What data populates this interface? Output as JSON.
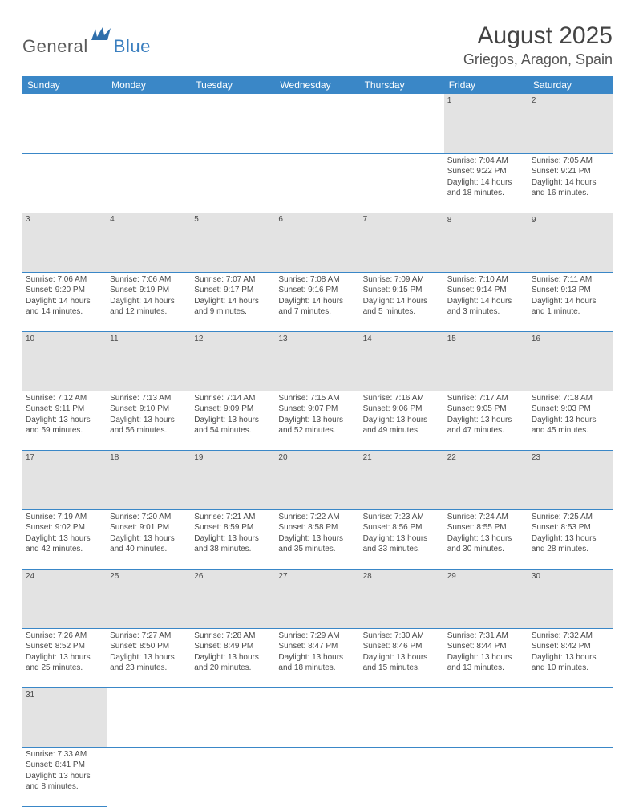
{
  "brand": {
    "part1": "General",
    "part2": "Blue"
  },
  "title": "August 2025",
  "location": "Griegos, Aragon, Spain",
  "weekdays": [
    "Sunday",
    "Monday",
    "Tuesday",
    "Wednesday",
    "Thursday",
    "Friday",
    "Saturday"
  ],
  "colors": {
    "header_bg": "#3a87c7",
    "header_text": "#ffffff",
    "daynum_bg": "#e3e3e3",
    "rule": "#3a87c7",
    "brand_blue": "#3b7fbf",
    "text": "#4a4a4a"
  },
  "weeks": [
    [
      null,
      null,
      null,
      null,
      null,
      {
        "n": "1",
        "sr": "7:04 AM",
        "ss": "9:22 PM",
        "dl": "14 hours and 18 minutes."
      },
      {
        "n": "2",
        "sr": "7:05 AM",
        "ss": "9:21 PM",
        "dl": "14 hours and 16 minutes."
      }
    ],
    [
      {
        "n": "3",
        "sr": "7:06 AM",
        "ss": "9:20 PM",
        "dl": "14 hours and 14 minutes."
      },
      {
        "n": "4",
        "sr": "7:06 AM",
        "ss": "9:19 PM",
        "dl": "14 hours and 12 minutes."
      },
      {
        "n": "5",
        "sr": "7:07 AM",
        "ss": "9:17 PM",
        "dl": "14 hours and 9 minutes."
      },
      {
        "n": "6",
        "sr": "7:08 AM",
        "ss": "9:16 PM",
        "dl": "14 hours and 7 minutes."
      },
      {
        "n": "7",
        "sr": "7:09 AM",
        "ss": "9:15 PM",
        "dl": "14 hours and 5 minutes."
      },
      {
        "n": "8",
        "sr": "7:10 AM",
        "ss": "9:14 PM",
        "dl": "14 hours and 3 minutes."
      },
      {
        "n": "9",
        "sr": "7:11 AM",
        "ss": "9:13 PM",
        "dl": "14 hours and 1 minute."
      }
    ],
    [
      {
        "n": "10",
        "sr": "7:12 AM",
        "ss": "9:11 PM",
        "dl": "13 hours and 59 minutes."
      },
      {
        "n": "11",
        "sr": "7:13 AM",
        "ss": "9:10 PM",
        "dl": "13 hours and 56 minutes."
      },
      {
        "n": "12",
        "sr": "7:14 AM",
        "ss": "9:09 PM",
        "dl": "13 hours and 54 minutes."
      },
      {
        "n": "13",
        "sr": "7:15 AM",
        "ss": "9:07 PM",
        "dl": "13 hours and 52 minutes."
      },
      {
        "n": "14",
        "sr": "7:16 AM",
        "ss": "9:06 PM",
        "dl": "13 hours and 49 minutes."
      },
      {
        "n": "15",
        "sr": "7:17 AM",
        "ss": "9:05 PM",
        "dl": "13 hours and 47 minutes."
      },
      {
        "n": "16",
        "sr": "7:18 AM",
        "ss": "9:03 PM",
        "dl": "13 hours and 45 minutes."
      }
    ],
    [
      {
        "n": "17",
        "sr": "7:19 AM",
        "ss": "9:02 PM",
        "dl": "13 hours and 42 minutes."
      },
      {
        "n": "18",
        "sr": "7:20 AM",
        "ss": "9:01 PM",
        "dl": "13 hours and 40 minutes."
      },
      {
        "n": "19",
        "sr": "7:21 AM",
        "ss": "8:59 PM",
        "dl": "13 hours and 38 minutes."
      },
      {
        "n": "20",
        "sr": "7:22 AM",
        "ss": "8:58 PM",
        "dl": "13 hours and 35 minutes."
      },
      {
        "n": "21",
        "sr": "7:23 AM",
        "ss": "8:56 PM",
        "dl": "13 hours and 33 minutes."
      },
      {
        "n": "22",
        "sr": "7:24 AM",
        "ss": "8:55 PM",
        "dl": "13 hours and 30 minutes."
      },
      {
        "n": "23",
        "sr": "7:25 AM",
        "ss": "8:53 PM",
        "dl": "13 hours and 28 minutes."
      }
    ],
    [
      {
        "n": "24",
        "sr": "7:26 AM",
        "ss": "8:52 PM",
        "dl": "13 hours and 25 minutes."
      },
      {
        "n": "25",
        "sr": "7:27 AM",
        "ss": "8:50 PM",
        "dl": "13 hours and 23 minutes."
      },
      {
        "n": "26",
        "sr": "7:28 AM",
        "ss": "8:49 PM",
        "dl": "13 hours and 20 minutes."
      },
      {
        "n": "27",
        "sr": "7:29 AM",
        "ss": "8:47 PM",
        "dl": "13 hours and 18 minutes."
      },
      {
        "n": "28",
        "sr": "7:30 AM",
        "ss": "8:46 PM",
        "dl": "13 hours and 15 minutes."
      },
      {
        "n": "29",
        "sr": "7:31 AM",
        "ss": "8:44 PM",
        "dl": "13 hours and 13 minutes."
      },
      {
        "n": "30",
        "sr": "7:32 AM",
        "ss": "8:42 PM",
        "dl": "13 hours and 10 minutes."
      }
    ],
    [
      {
        "n": "31",
        "sr": "7:33 AM",
        "ss": "8:41 PM",
        "dl": "13 hours and 8 minutes."
      },
      null,
      null,
      null,
      null,
      null,
      null
    ]
  ],
  "labels": {
    "sunrise": "Sunrise:",
    "sunset": "Sunset:",
    "daylight": "Daylight:"
  }
}
